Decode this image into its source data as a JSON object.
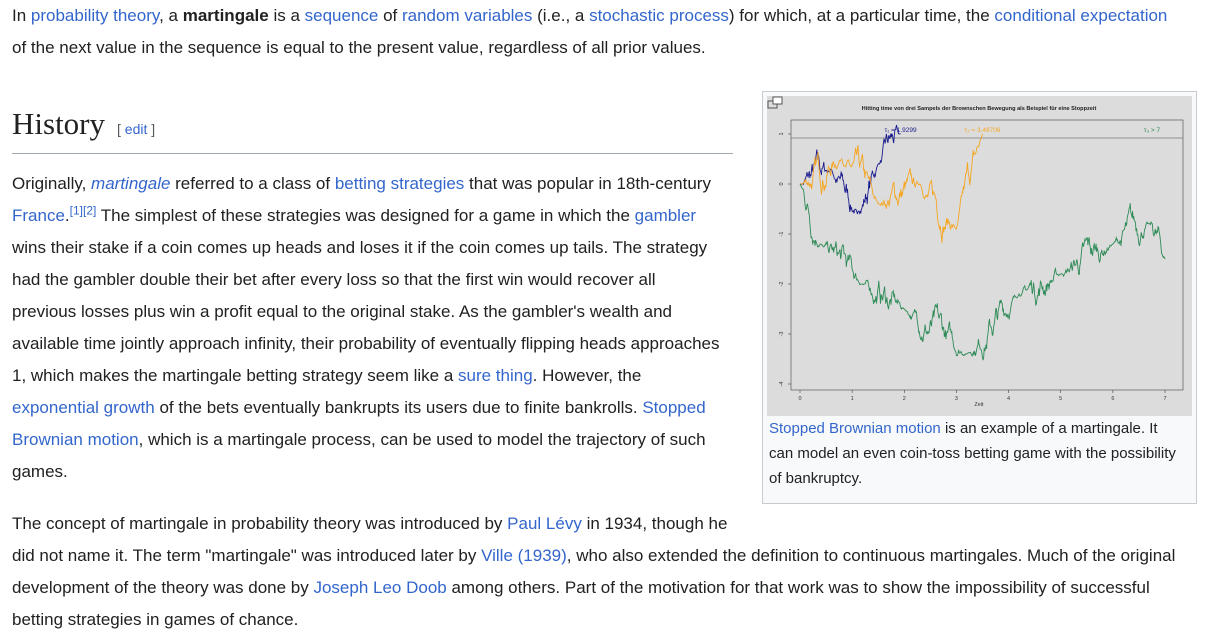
{
  "intro": [
    "In ",
    "probability theory",
    ", a ",
    "martingale",
    " is a ",
    "sequence",
    " of ",
    "random variables",
    " (i.e., a ",
    "stochastic process",
    ") for which, at a particular time, the ",
    "conditional expectation",
    " of the next value in the sequence is equal to the present value, regardless of all prior values."
  ],
  "section": {
    "heading": "History",
    "edit_open": "[",
    "edit": "edit",
    "edit_close": "]",
    "paragraphs": [
      [
        "Originally, ",
        "martingale",
        " referred to a class of ",
        "betting strategies",
        " that was popular in 18th-century ",
        "France",
        ".",
        "[1]",
        "[2]",
        " The simplest of these strategies was designed for a game in which the ",
        "gambler",
        " wins their stake if a coin comes up heads and loses it if the coin comes up tails. The strategy had the gambler double their bet after every loss so that the first win would recover all previous losses plus win a profit equal to the original stake. As the gambler's wealth and available time jointly approach infinity, their probability of eventually flipping heads approaches 1, which makes the martingale betting strategy seem like a ",
        "sure thing",
        ". However, the ",
        "exponential growth",
        " of the bets eventually bankrupts its users due to finite bankrolls. ",
        "Stopped Brownian motion",
        ", which is a martingale process, can be used to model the trajectory of such games."
      ],
      [
        "The concept of martingale in probability theory was introduced by ",
        "Paul Lévy",
        " in 1934, though he did not name it. The term \"martingale\" was introduced later by ",
        "Ville (1939)",
        ", who also extended the definition to continuous martingales. Much of the original development of the theory was done by ",
        "Joseph Leo Doob",
        " among others. Part of the motivation for that work was to show the impossibility of successful betting strategies in games of chance."
      ]
    ]
  },
  "figure": {
    "image": {
      "title": "Hitting time von drei Sampels der Brownschen Bewegung als Beispiel für eine Stoppzeit",
      "annotations": [
        "τ₁ = 1.9299",
        "τ₂ = 3.49706",
        "τ₃ > 7"
      ],
      "x_label": "Zeit",
      "x_ticks": [
        "0",
        "1",
        "2",
        "3",
        "4",
        "5",
        "6",
        "7"
      ],
      "y_ticks": [
        "1",
        "0",
        "-1",
        "-2",
        "-3",
        "-4"
      ]
    },
    "caption": [
      "Stopped Brownian motion",
      " is an example of a martingale. It can model an even coin-toss betting game with the possibility of bankruptcy."
    ]
  }
}
